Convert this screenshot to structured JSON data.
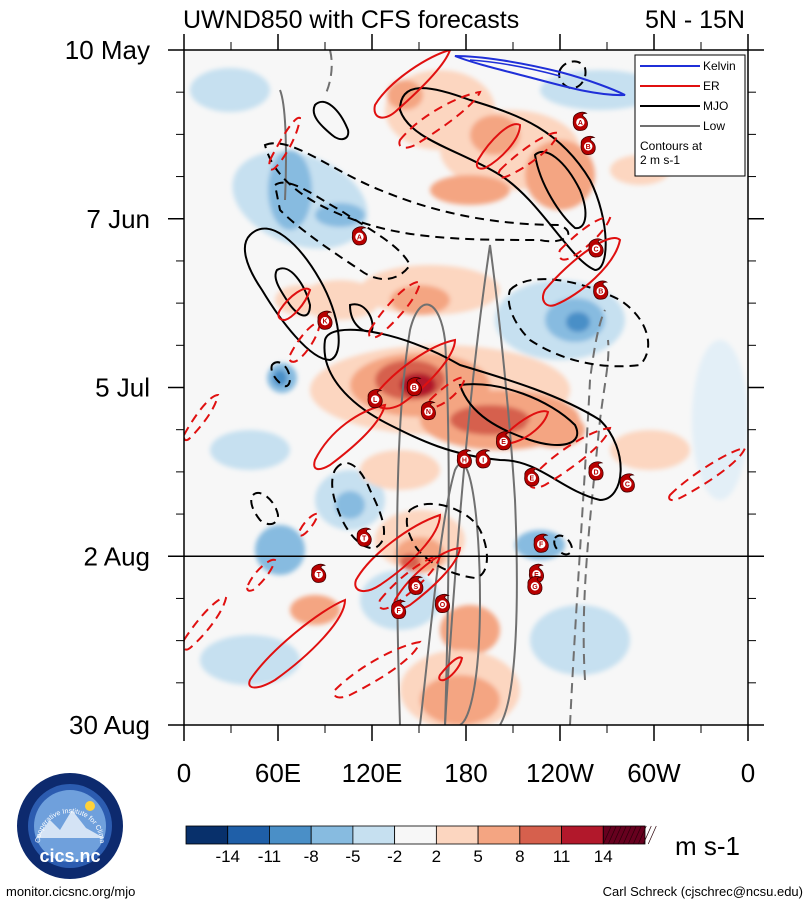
{
  "chart_data": {
    "type": "heatmap",
    "title": "UWND850 with CFS forecasts",
    "region": "5N - 15N",
    "y_axis": {
      "labels": [
        "10 May",
        "7 Jun",
        "5 Jul",
        "2 Aug",
        "30 Aug"
      ],
      "note": "time (2-week spacing, 28-day labeled ticks)"
    },
    "x_axis": {
      "labels": [
        "0",
        "60E",
        "120E",
        "180",
        "120W",
        "60W",
        "0"
      ],
      "range_deg": [
        0,
        360
      ]
    },
    "forecast_start": "2 Aug",
    "colorbar": {
      "levels": [
        "-14",
        "-11",
        "-8",
        "-5",
        "-2",
        "2",
        "5",
        "8",
        "11",
        "14"
      ],
      "colors": [
        "#08306b",
        "#1f5fa8",
        "#4a8fc7",
        "#87bbe0",
        "#c6e0f0",
        "#f7f7f7",
        "#fcd6c0",
        "#f4a582",
        "#d6604d",
        "#b2182b",
        "#67001f"
      ],
      "units": "m s-1"
    },
    "legend": {
      "items": [
        {
          "label": "Kelvin",
          "color": "#1f2fd8"
        },
        {
          "label": "ER",
          "color": "#e01010"
        },
        {
          "label": "MJO",
          "color": "#000000"
        },
        {
          "label": "Low",
          "color": "#707070"
        }
      ],
      "note_line1": "Contours at",
      "note_line2": "2 m s-1"
    },
    "storms": [
      {
        "letter": "A",
        "lon": 112,
        "date": "10 Jun"
      },
      {
        "letter": "K",
        "lon": 90,
        "date": "24 Jun"
      },
      {
        "letter": "A",
        "lon": 253,
        "date": "22 May"
      },
      {
        "letter": "B",
        "lon": 258,
        "date": "26 May"
      },
      {
        "letter": "C",
        "lon": 263,
        "date": "12 Jun"
      },
      {
        "letter": "B",
        "lon": 266,
        "date": "19 Jun"
      },
      {
        "letter": "L",
        "lon": 122,
        "date": "7 Jul"
      },
      {
        "letter": "B",
        "lon": 147,
        "date": "5 Jul"
      },
      {
        "letter": "N",
        "lon": 156,
        "date": "9 Jul"
      },
      {
        "letter": "H",
        "lon": 179,
        "date": "17 Jul"
      },
      {
        "letter": "I",
        "lon": 191,
        "date": "17 Jul"
      },
      {
        "letter": "E",
        "lon": 204,
        "date": "14 Jul"
      },
      {
        "letter": "D",
        "lon": 263,
        "date": "19 Jul"
      },
      {
        "letter": "E",
        "lon": 222,
        "date": "20 Jul"
      },
      {
        "letter": "F",
        "lon": 228,
        "date": "31 Jul"
      },
      {
        "letter": "C",
        "lon": 283,
        "date": "21 Jul"
      },
      {
        "letter": "T",
        "lon": 115,
        "date": "30 Jul"
      },
      {
        "letter": "T",
        "lon": 86,
        "date": "5 Aug"
      },
      {
        "letter": "S",
        "lon": 148,
        "date": "7 Aug"
      },
      {
        "letter": "E",
        "lon": 225,
        "date": "5 Aug"
      },
      {
        "letter": "G",
        "lon": 224,
        "date": "7 Aug"
      },
      {
        "letter": "F",
        "lon": 137,
        "date": "11 Aug"
      },
      {
        "letter": "O",
        "lon": 165,
        "date": "10 Aug"
      }
    ]
  },
  "footer": {
    "left": "monitor.cicsnc.org/mjo",
    "right": "Carl Schreck (cjschrec@ncsu.edu)"
  },
  "logo": {
    "text": "cics.nc",
    "ring_text": "Cooperative Institute for Climate and Satellites"
  }
}
